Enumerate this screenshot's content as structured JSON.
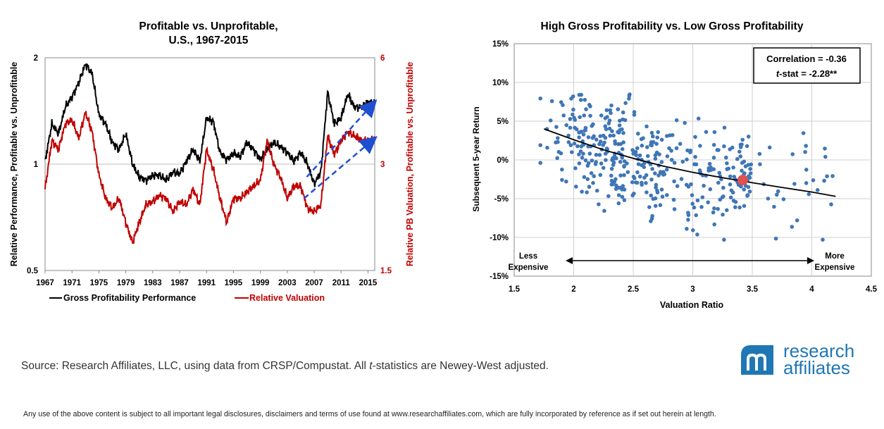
{
  "charts": {
    "left": {
      "title_line1": "Profitable vs. Unprofitable,",
      "title_line2": "U.S., 1967-2015",
      "ylabel_left": "Relative Performance, Profitable  vs. Unprofitable",
      "ylabel_right": "Relative PB Valuation, Profitable  vs. Unprofitable",
      "legend_perf": "Gross Profitability Performance",
      "legend_val": "Relative Valuation"
    },
    "right": {
      "title": "High Gross Profitability vs. Low Gross Profitability",
      "xlabel": "Valuation Ratio",
      "ylabel": "Subsequent 5-year Return",
      "corr_label": "Correlation =  -0.36",
      "tstat_t": "t",
      "tstat_rest": "-stat = -2.28**",
      "arrow_left_line1": "Less",
      "arrow_left_line2": "Expensive",
      "arrow_right_line1": "More",
      "arrow_right_line2": "Expensive"
    }
  },
  "chart_data": [
    {
      "type": "line",
      "title": "Profitable vs. Unprofitable, U.S., 1967-2015",
      "ylabel": "Relative Performance, Profitable  vs. Unprofitable",
      "y2label": "Relative PB Valuation, Profitable  vs. Unprofitable",
      "x_ticks": [
        "1967",
        "1971",
        "1975",
        "1979",
        "1983",
        "1987",
        "1991",
        "1995",
        "1999",
        "2003",
        "2007",
        "2011",
        "2015"
      ],
      "xlim": [
        1967,
        2016
      ],
      "y_ticks": [
        "0.5",
        "1",
        "2"
      ],
      "ylim": [
        0.5,
        2
      ],
      "y_scale": "log",
      "y2_ticks": [
        "1.5",
        "3",
        "6"
      ],
      "y2lim": [
        1.5,
        6
      ],
      "y2_scale": "log",
      "grid": true,
      "legend": "bottom",
      "colors": {
        "performance": "#000000",
        "valuation": "#c00000",
        "trend": "#1f4fd1"
      },
      "series": [
        {
          "name": "Gross Profitability Performance",
          "axis": "left",
          "x": [
            1967,
            1968,
            1969,
            1970,
            1971,
            1972,
            1973,
            1974,
            1975,
            1976,
            1977,
            1978,
            1979,
            1980,
            1981,
            1982,
            1983,
            1984,
            1985,
            1986,
            1987,
            1988,
            1989,
            1990,
            1991,
            1992,
            1993,
            1994,
            1995,
            1996,
            1997,
            1998,
            1999,
            2000,
            2001,
            2002,
            2003,
            2004,
            2005,
            2006,
            2007,
            2008,
            2009,
            2010,
            2011,
            2012,
            2013,
            2014,
            2015,
            2016
          ],
          "y": [
            1.02,
            1.3,
            1.22,
            1.45,
            1.55,
            1.7,
            1.92,
            1.8,
            1.38,
            1.3,
            1.15,
            1.1,
            1.22,
            1.0,
            0.92,
            0.9,
            0.93,
            0.93,
            0.9,
            0.95,
            0.94,
            1.02,
            1.1,
            1.02,
            1.35,
            1.32,
            1.08,
            1.03,
            1.07,
            1.05,
            1.15,
            1.1,
            1.03,
            1.1,
            1.15,
            1.12,
            1.08,
            1.02,
            1.08,
            1.0,
            0.88,
            0.95,
            1.6,
            1.3,
            1.35,
            1.58,
            1.45,
            1.45,
            1.5,
            1.48
          ]
        },
        {
          "name": "Relative Valuation",
          "axis": "right",
          "x": [
            1967,
            1968,
            1969,
            1970,
            1971,
            1972,
            1973,
            1974,
            1975,
            1976,
            1977,
            1978,
            1979,
            1980,
            1981,
            1982,
            1983,
            1984,
            1985,
            1986,
            1987,
            1988,
            1989,
            1990,
            1991,
            1992,
            1993,
            1994,
            1995,
            1996,
            1997,
            1998,
            1999,
            2000,
            2001,
            2002,
            2003,
            2004,
            2005,
            2006,
            2007,
            2008,
            2009,
            2010,
            2011,
            2012,
            2013,
            2014,
            2015,
            2016
          ],
          "y": [
            2.55,
            3.5,
            3.3,
            3.9,
            4.0,
            3.55,
            4.2,
            3.7,
            2.8,
            2.4,
            2.25,
            2.4,
            2.05,
            1.8,
            2.05,
            2.3,
            2.35,
            2.45,
            2.4,
            2.2,
            2.35,
            2.3,
            2.55,
            2.3,
            3.3,
            2.9,
            2.4,
            2.05,
            2.4,
            2.4,
            2.5,
            2.6,
            2.7,
            3.5,
            3.0,
            2.75,
            2.4,
            2.6,
            2.6,
            2.25,
            2.2,
            2.3,
            3.6,
            3.2,
            3.5,
            3.7,
            3.6,
            3.5,
            3.5,
            3.55
          ]
        }
      ]
    },
    {
      "type": "scatter",
      "title": "High Gross Profitability vs. Low Gross Profitability",
      "xlabel": "Valuation Ratio",
      "ylabel": "Subsequent 5-year Return",
      "x_ticks": [
        "1.5",
        "2",
        "2.5",
        "3",
        "3.5",
        "4",
        "4.5"
      ],
      "xlim": [
        1.5,
        4.5
      ],
      "y_ticks": [
        "-15%",
        "-10%",
        "-5%",
        "0%",
        "5%",
        "10%",
        "15%"
      ],
      "ylim": [
        -15,
        15
      ],
      "grid": true,
      "colors": {
        "points": "#3f76b6",
        "highlight": "#e05050",
        "fit": "#000000"
      },
      "fit_curve": {
        "x": [
          1.75,
          2.0,
          2.25,
          2.5,
          2.75,
          3.0,
          3.25,
          3.5,
          3.75,
          4.0,
          4.2
        ],
        "y": [
          4.0,
          2.6,
          1.3,
          0.2,
          -0.8,
          -1.6,
          -2.3,
          -2.95,
          -3.55,
          -4.15,
          -4.7
        ]
      },
      "highlight_point": {
        "x": 3.42,
        "y": -2.6
      },
      "annotations": [
        "Correlation =  -0.36",
        "t-stat = -2.28**"
      ]
    }
  ]
}
